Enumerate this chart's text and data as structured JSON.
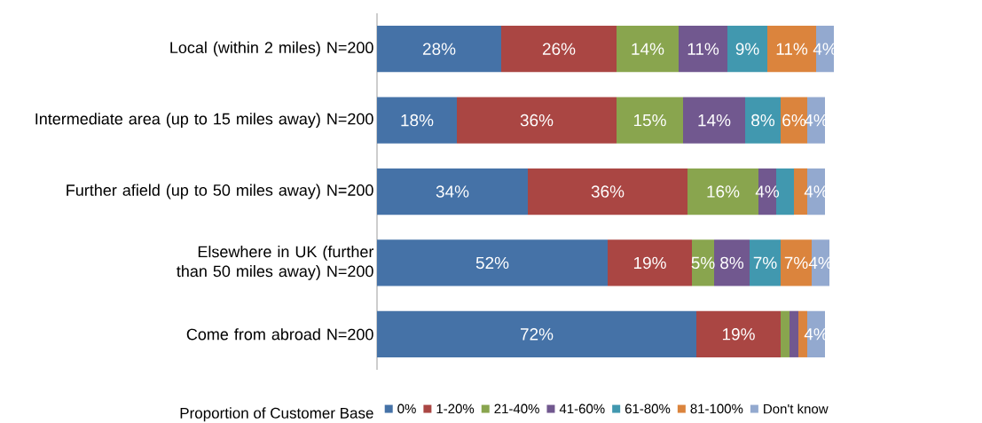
{
  "chart_data": {
    "type": "bar",
    "orientation": "horizontal",
    "stacked": true,
    "legend": "bottom",
    "legend_title": "Proportion of Customer Base",
    "categories": [
      "Local (within 2 miles) N=200",
      "Intermediate area (up to 15 miles away) N=200",
      "Further afield (up to 50 miles away) N=200",
      "Elsewhere in UK (further than 50 miles away) N=200",
      "Come from abroad N=200"
    ],
    "series": [
      {
        "name": "0%",
        "color": "#4572a7",
        "values": [
          28,
          18,
          34,
          52,
          72
        ],
        "value_labels": [
          "28%",
          "18%",
          "34%",
          "52%",
          "72%"
        ]
      },
      {
        "name": "1-20%",
        "color": "#aa4643",
        "values": [
          26,
          36,
          36,
          19,
          19
        ],
        "value_labels": [
          "26%",
          "36%",
          "36%",
          "19%",
          "19%"
        ]
      },
      {
        "name": "21-40%",
        "color": "#89a54e",
        "values": [
          14,
          15,
          16,
          5,
          2
        ],
        "value_labels": [
          "14%",
          "15%",
          "16%",
          "5%",
          null
        ]
      },
      {
        "name": "41-60%",
        "color": "#71588f",
        "values": [
          11,
          14,
          4,
          8,
          2
        ],
        "value_labels": [
          "11%",
          "14%",
          "4%",
          "8%",
          null
        ]
      },
      {
        "name": "61-80%",
        "color": "#4198af",
        "values": [
          9,
          8,
          4,
          7,
          0
        ],
        "value_labels": [
          "9%",
          "8%",
          null,
          "7%",
          null
        ]
      },
      {
        "name": "81-100%",
        "color": "#db843d",
        "values": [
          11,
          6,
          3,
          7,
          2
        ],
        "value_labels": [
          "11%",
          "6%",
          null,
          "7%",
          null
        ]
      },
      {
        "name": "Don't know",
        "color": "#93a9cf",
        "values": [
          4,
          4,
          4,
          4,
          4
        ],
        "value_labels": [
          "4%",
          "4%",
          "4%",
          "4%",
          "4%"
        ]
      }
    ]
  }
}
